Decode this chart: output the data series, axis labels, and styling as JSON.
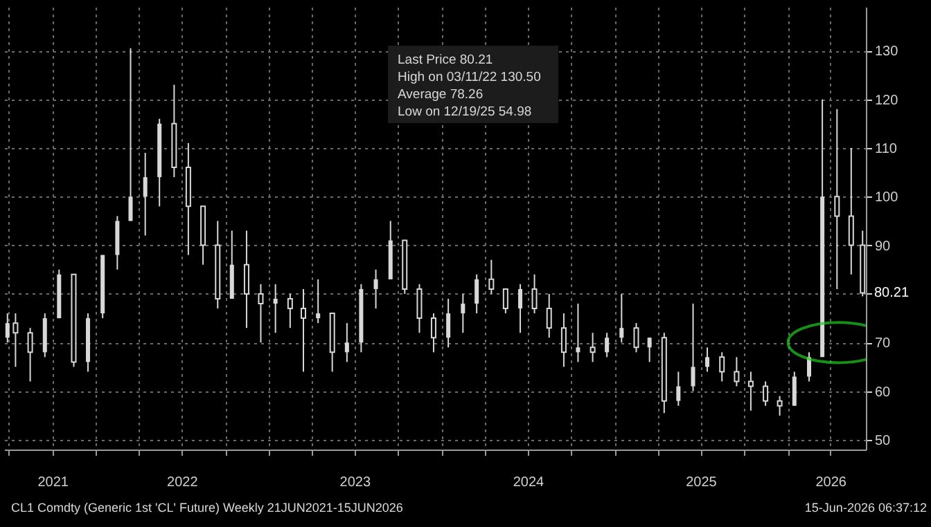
{
  "chart_data": {
    "type": "candlestick",
    "color": "#d8d8d8",
    "x": [
      "2021-06-28",
      "2021-07-15",
      "2021-08-15",
      "2021-09-15",
      "2021-10-15",
      "2021-11-15",
      "2021-12-15",
      "2022-01-15",
      "2022-02-15",
      "2022-03-15",
      "2022-04-15",
      "2022-05-15",
      "2022-06-15",
      "2022-07-15",
      "2022-08-15",
      "2022-09-15",
      "2022-10-15",
      "2022-11-15",
      "2022-12-15",
      "2023-01-15",
      "2023-02-15",
      "2023-03-15",
      "2023-04-15",
      "2023-05-15",
      "2023-06-15",
      "2023-07-15",
      "2023-08-15",
      "2023-09-15",
      "2023-10-15",
      "2023-11-15",
      "2023-12-15",
      "2024-01-15",
      "2024-02-15",
      "2024-03-15",
      "2024-04-15",
      "2024-05-15",
      "2024-06-15",
      "2024-07-15",
      "2024-08-15",
      "2024-09-15",
      "2024-10-15",
      "2024-11-15",
      "2024-12-15",
      "2025-01-15",
      "2025-02-15",
      "2025-03-15",
      "2025-04-15",
      "2025-05-15",
      "2025-06-15",
      "2025-07-15",
      "2025-08-15",
      "2025-09-15",
      "2025-10-15",
      "2025-11-15",
      "2025-12-15",
      "2026-01-15",
      "2026-02-15",
      "2026-03-15",
      "2026-04-15",
      "2026-05-15",
      "2026-06-08"
    ],
    "ohlc": [
      [
        71,
        76,
        70,
        74
      ],
      [
        74,
        76,
        65,
        72
      ],
      [
        72,
        73,
        62,
        68
      ],
      [
        68,
        76,
        67,
        75
      ],
      [
        75,
        85,
        75,
        84
      ],
      [
        84,
        84,
        65,
        66
      ],
      [
        66,
        76,
        64,
        75
      ],
      [
        76,
        88,
        75,
        88
      ],
      [
        88,
        96,
        85,
        95
      ],
      [
        95,
        130.5,
        95,
        100
      ],
      [
        100,
        109,
        92,
        104
      ],
      [
        104,
        116,
        98,
        115
      ],
      [
        115,
        123,
        104,
        106
      ],
      [
        106,
        111,
        88,
        98
      ],
      [
        98,
        98,
        86,
        90
      ],
      [
        90,
        95,
        77,
        79
      ],
      [
        79,
        93,
        79,
        86
      ],
      [
        86,
        93,
        73,
        80
      ],
      [
        80,
        82,
        70,
        78
      ],
      [
        78,
        82,
        72,
        79
      ],
      [
        79,
        80,
        73,
        77
      ],
      [
        77,
        81,
        64,
        75
      ],
      [
        75,
        83,
        74,
        76
      ],
      [
        76,
        76,
        64,
        68
      ],
      [
        68,
        74,
        66,
        70
      ],
      [
        70,
        82,
        68,
        81
      ],
      [
        81,
        85,
        77,
        83
      ],
      [
        83,
        95,
        83,
        91
      ],
      [
        91,
        91,
        80,
        81
      ],
      [
        81,
        82,
        72,
        75
      ],
      [
        75,
        76,
        68,
        71
      ],
      [
        71,
        79,
        69,
        76
      ],
      [
        76,
        80,
        72,
        78
      ],
      [
        78,
        84,
        76,
        83
      ],
      [
        83,
        87,
        80,
        81
      ],
      [
        81,
        81,
        76,
        77
      ],
      [
        77,
        82,
        72,
        81
      ],
      [
        81,
        84,
        76,
        77
      ],
      [
        77,
        80,
        71,
        73
      ],
      [
        73,
        76,
        65,
        68
      ],
      [
        68,
        78,
        66,
        69
      ],
      [
        69,
        72,
        66,
        68
      ],
      [
        68,
        72,
        67,
        71
      ],
      [
        71,
        80,
        70,
        73
      ],
      [
        73,
        74,
        68,
        69
      ],
      [
        69,
        71,
        66,
        71
      ],
      [
        71,
        72,
        55.5,
        58
      ],
      [
        58,
        64,
        57,
        61
      ],
      [
        61,
        78,
        60,
        65
      ],
      [
        65,
        69,
        64,
        67
      ],
      [
        67,
        68,
        62,
        64
      ],
      [
        64,
        67,
        61,
        62
      ],
      [
        62,
        64,
        56,
        61
      ],
      [
        61,
        62,
        57,
        58
      ],
      [
        58,
        59,
        54.98,
        57
      ],
      [
        57,
        64,
        57,
        63
      ],
      [
        63,
        68,
        62,
        67
      ],
      [
        67,
        120,
        67,
        100
      ],
      [
        100,
        118,
        81,
        96
      ],
      [
        96,
        110,
        84,
        90
      ],
      [
        90,
        93,
        79.5,
        80.21
      ]
    ],
    "xlim": [
      "2021-06-21",
      "2026-06-15"
    ],
    "xticks": [
      {
        "value": "2021-07-01",
        "label": null
      },
      {
        "value": "2021-10-01",
        "label": "2021"
      },
      {
        "value": "2022-01-01",
        "label": null
      },
      {
        "value": "2022-04-01",
        "label": null
      },
      {
        "value": "2022-07-01",
        "label": "2022"
      },
      {
        "value": "2022-10-01",
        "label": null
      },
      {
        "value": "2023-01-01",
        "label": null
      },
      {
        "value": "2023-04-01",
        "label": null
      },
      {
        "value": "2023-07-01",
        "label": "2023"
      },
      {
        "value": "2023-10-01",
        "label": null
      },
      {
        "value": "2024-01-01",
        "label": null
      },
      {
        "value": "2024-04-01",
        "label": null
      },
      {
        "value": "2024-07-01",
        "label": "2024"
      },
      {
        "value": "2024-10-01",
        "label": null
      },
      {
        "value": "2025-01-01",
        "label": null
      },
      {
        "value": "2025-04-01",
        "label": null
      },
      {
        "value": "2025-07-01",
        "label": "2025"
      },
      {
        "value": "2025-10-01",
        "label": null
      },
      {
        "value": "2026-01-01",
        "label": null
      },
      {
        "value": "2026-04-01",
        "label": "2026"
      }
    ],
    "ylim": [
      48,
      139
    ],
    "yticks": [
      50,
      60,
      70,
      {
        "value": 80,
        "label": null
      },
      90,
      100,
      110,
      120,
      130
    ],
    "grid": true,
    "annotations": [
      "Last Price 80.21",
      "High on 03/11/22 130.50",
      "Average 78.26",
      "Low on 12/19/25 54.98",
      "CL1 Comdty (Generic 1st 'CL' Future) Weekly 21JUN2021-15JUN2026",
      "15-Jun-2026 06:37:12",
      {
        "text": "80.21",
        "x": "2026-06-15",
        "y": 80.21
      }
    ]
  }
}
